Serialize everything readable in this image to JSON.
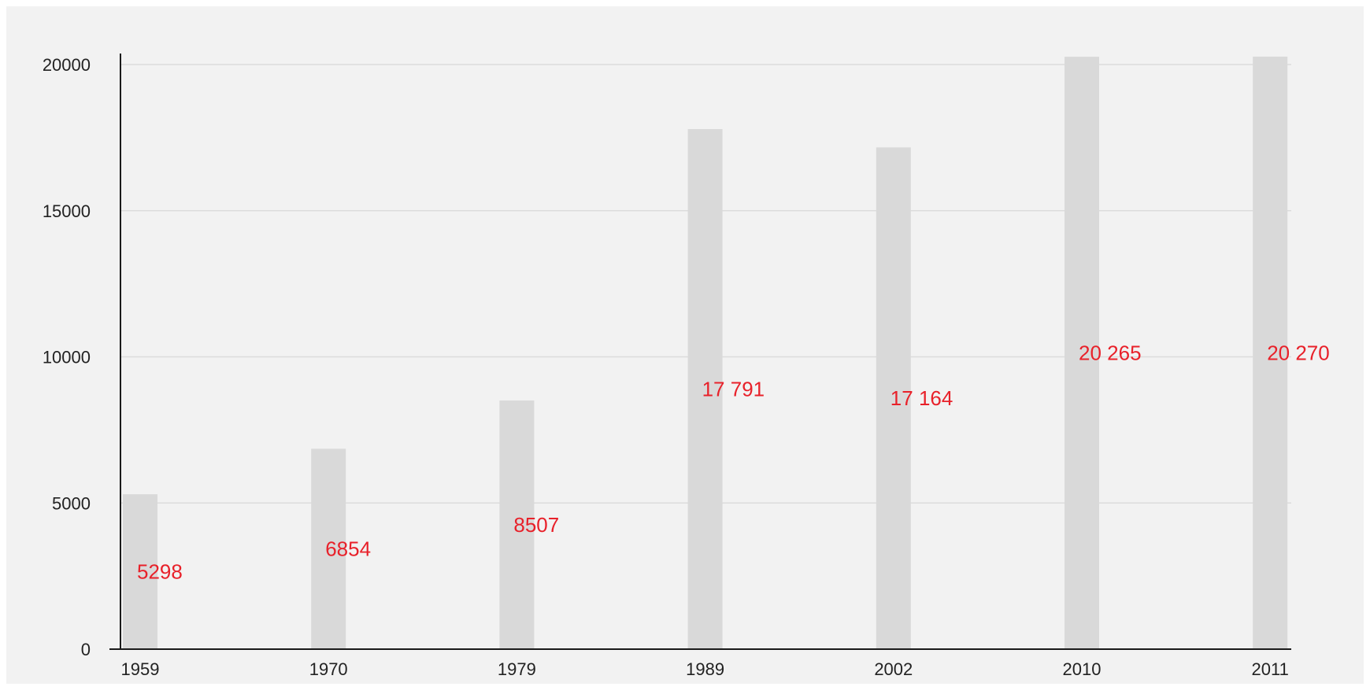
{
  "chart_data": {
    "type": "bar",
    "categories": [
      "1959",
      "1970",
      "1979",
      "1989",
      "2002",
      "2010",
      "2011"
    ],
    "values": [
      5298,
      6854,
      8507,
      17791,
      17164,
      20265,
      20270
    ],
    "data_labels": [
      "5298",
      "6854",
      "8507",
      "17 791",
      "17 164",
      "20 265",
      "20 270"
    ],
    "y_ticks": [
      0,
      5000,
      10000,
      15000,
      20000
    ],
    "y_tick_labels": [
      "0",
      "5000",
      "10000",
      "15000",
      "20000"
    ],
    "ylim": [
      0,
      20000
    ],
    "grid": true,
    "title": "",
    "xlabel": "",
    "ylabel": "",
    "colors": {
      "background": "#f2f2f2",
      "bar": "#d9d9d9",
      "grid": "#dcdcdc",
      "axis": "#1a1a1a",
      "tick_text": "#222222",
      "data_label": "#e8212a"
    }
  }
}
